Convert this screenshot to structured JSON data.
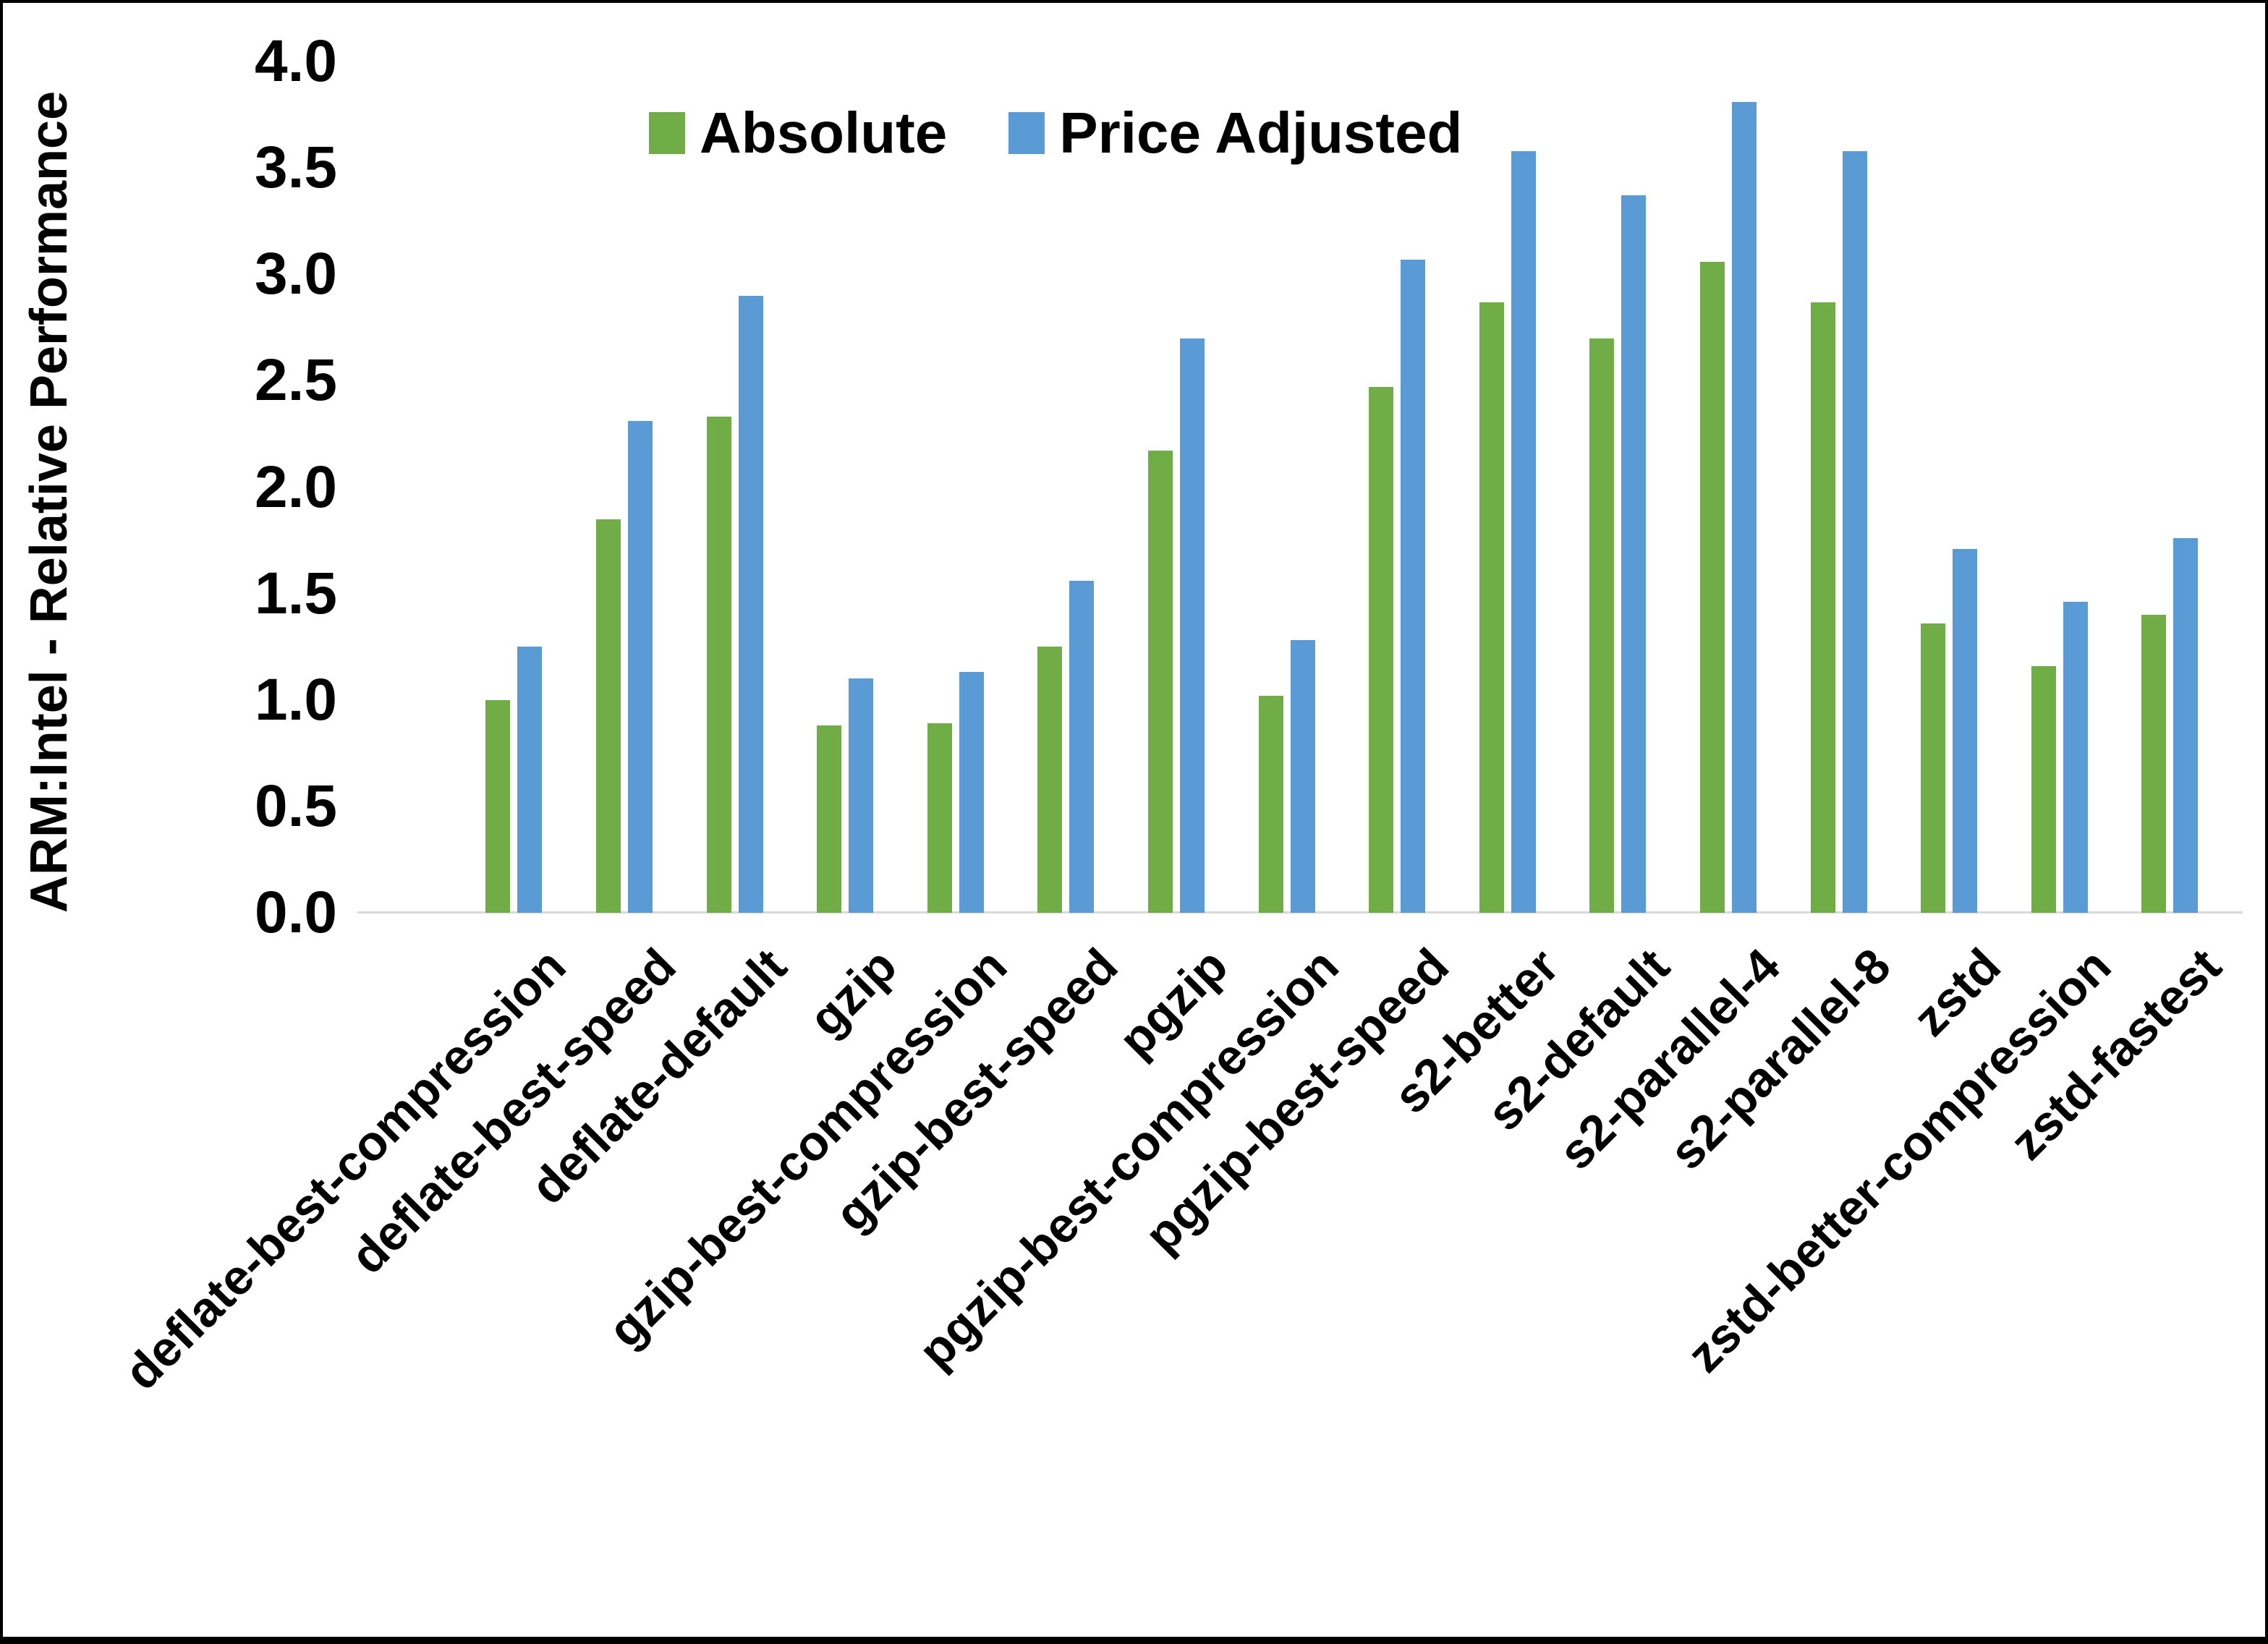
{
  "chart_data": {
    "type": "bar",
    "title": "",
    "xlabel": "",
    "ylabel": "ARM:Intel - Relative Performance",
    "ylim": [
      0.0,
      4.0
    ],
    "ytick_step": 0.5,
    "yticks": [
      "0.0",
      "0.5",
      "1.0",
      "1.5",
      "2.0",
      "2.5",
      "3.0",
      "3.5",
      "4.0"
    ],
    "grid": false,
    "legend_position": "top-center",
    "categories": [
      "deflate-best-compression",
      "deflate-best-speed",
      "deflate-default",
      "gzip",
      "gzip-best-compression",
      "gzip-best-speed",
      "pgzip",
      "pgzip-best-compression",
      "pgzip-best-speed",
      "s2-better",
      "s2-default",
      "s2-parallel-4",
      "s2-parallel-8",
      "zstd",
      "zstd-better-compression",
      "zstd-fastest"
    ],
    "series": [
      {
        "name": "Absolute",
        "color": "#70AD47",
        "values": [
          1.0,
          1.85,
          2.33,
          0.88,
          0.89,
          1.25,
          2.17,
          1.02,
          2.47,
          2.87,
          2.7,
          3.06,
          2.87,
          1.36,
          1.16,
          1.4
        ]
      },
      {
        "name": "Price Adjusted",
        "color": "#5B9BD5",
        "values": [
          1.25,
          2.31,
          2.9,
          1.1,
          1.13,
          1.56,
          2.7,
          1.28,
          3.07,
          3.58,
          3.37,
          3.81,
          3.58,
          1.71,
          1.46,
          1.76
        ]
      }
    ],
    "axis_line_color": "#D9D9D9",
    "frame_color": "#000000",
    "background_color": "#FFFFFF"
  }
}
